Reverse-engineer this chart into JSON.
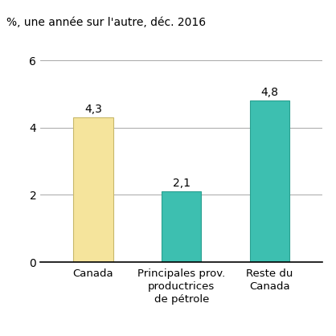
{
  "categories": [
    "Canada",
    "Principales prov.\nproductrices\nde pétrole",
    "Reste du\nCanada"
  ],
  "values": [
    4.3,
    2.1,
    4.8
  ],
  "value_labels": [
    "4,3",
    "2,1",
    "4,8"
  ],
  "bar_colors": [
    "#f5e49c",
    "#3dbfb0",
    "#3dbfb0"
  ],
  "bar_edge_colors": [
    "#c8b86a",
    "#2aa090",
    "#2aa090"
  ],
  "sup_title": "%, une année sur l'autre, déc. 2016",
  "ylim": [
    0,
    6
  ],
  "yticks": [
    0,
    2,
    4,
    6
  ],
  "grid_color": "#999999",
  "background_color": "#ffffff",
  "label_fontsize": 9.5,
  "tick_fontsize": 10,
  "value_fontsize": 10,
  "bar_width": 0.45,
  "sup_title_fontsize": 10
}
